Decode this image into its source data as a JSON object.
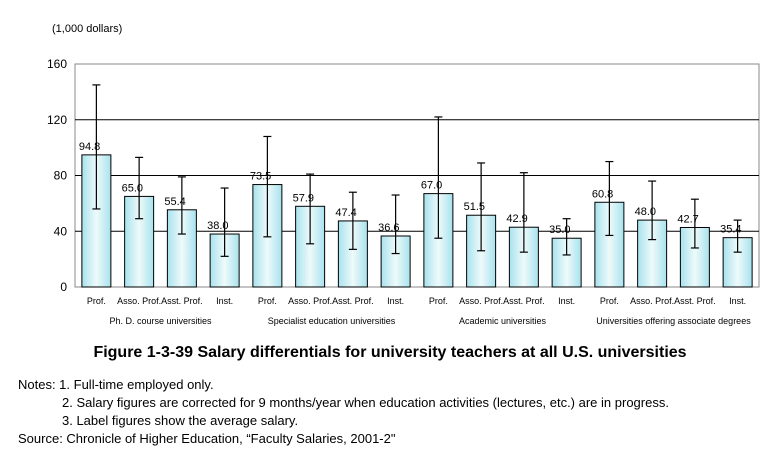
{
  "chart_data": {
    "type": "bar",
    "unit_label": "(1,000 dollars)",
    "ylim": [
      0,
      160
    ],
    "yticks": [
      0,
      40,
      80,
      120,
      160
    ],
    "grid": true,
    "groups": [
      {
        "name": "Ph. D. course universities",
        "bars": [
          {
            "label": "Prof.",
            "value": 94.8,
            "low": 56,
            "high": 145
          },
          {
            "label": "Asso. Prof.",
            "value": 65.0,
            "low": 49,
            "high": 93
          },
          {
            "label": "Asst. Prof.",
            "value": 55.4,
            "low": 38,
            "high": 79
          },
          {
            "label": "Inst.",
            "value": 38.0,
            "low": 22,
            "high": 71
          }
        ]
      },
      {
        "name": "Specialist education universities",
        "bars": [
          {
            "label": "Prof.",
            "value": 73.5,
            "low": 36,
            "high": 108
          },
          {
            "label": "Asso. Prof.",
            "value": 57.9,
            "low": 31,
            "high": 81
          },
          {
            "label": "Asst. Prof.",
            "value": 47.4,
            "low": 27,
            "high": 68
          },
          {
            "label": "Inst.",
            "value": 36.6,
            "low": 24,
            "high": 66
          }
        ]
      },
      {
        "name": "Academic universities",
        "bars": [
          {
            "label": "Prof.",
            "value": 67.0,
            "low": 35,
            "high": 122
          },
          {
            "label": "Asso. Prof.",
            "value": 51.5,
            "low": 26,
            "high": 89
          },
          {
            "label": "Asst. Prof.",
            "value": 42.9,
            "low": 25,
            "high": 82
          },
          {
            "label": "Inst.",
            "value": 35.0,
            "low": 23,
            "high": 49
          }
        ]
      },
      {
        "name": "Universities offering associate degrees",
        "bars": [
          {
            "label": "Prof.",
            "value": 60.8,
            "low": 37,
            "high": 90
          },
          {
            "label": "Asso. Prof.",
            "value": 48.0,
            "low": 34,
            "high": 76
          },
          {
            "label": "Asst. Prof.",
            "value": 42.7,
            "low": 28,
            "high": 63
          },
          {
            "label": "Inst.",
            "value": 35.4,
            "low": 25,
            "high": 48
          }
        ]
      }
    ],
    "colors": {
      "bar_fill_center": "#eefafa",
      "bar_fill_edge": "#a8e2ee",
      "bar_stroke": "#000000",
      "plot_border": "#888888"
    }
  },
  "caption": "Figure 1-3-39 Salary differentials for university teachers at all U.S. universities",
  "notes": {
    "line1": "Notes: 1. Full-time employed only.",
    "line2": "2. Salary figures are corrected for 9 months/year when education activities (lectures, etc.) are in progress.",
    "line3": "3. Label figures show the average salary.",
    "source": "Source: Chronicle of Higher Education, “Faculty Salaries, 2001-2\""
  }
}
